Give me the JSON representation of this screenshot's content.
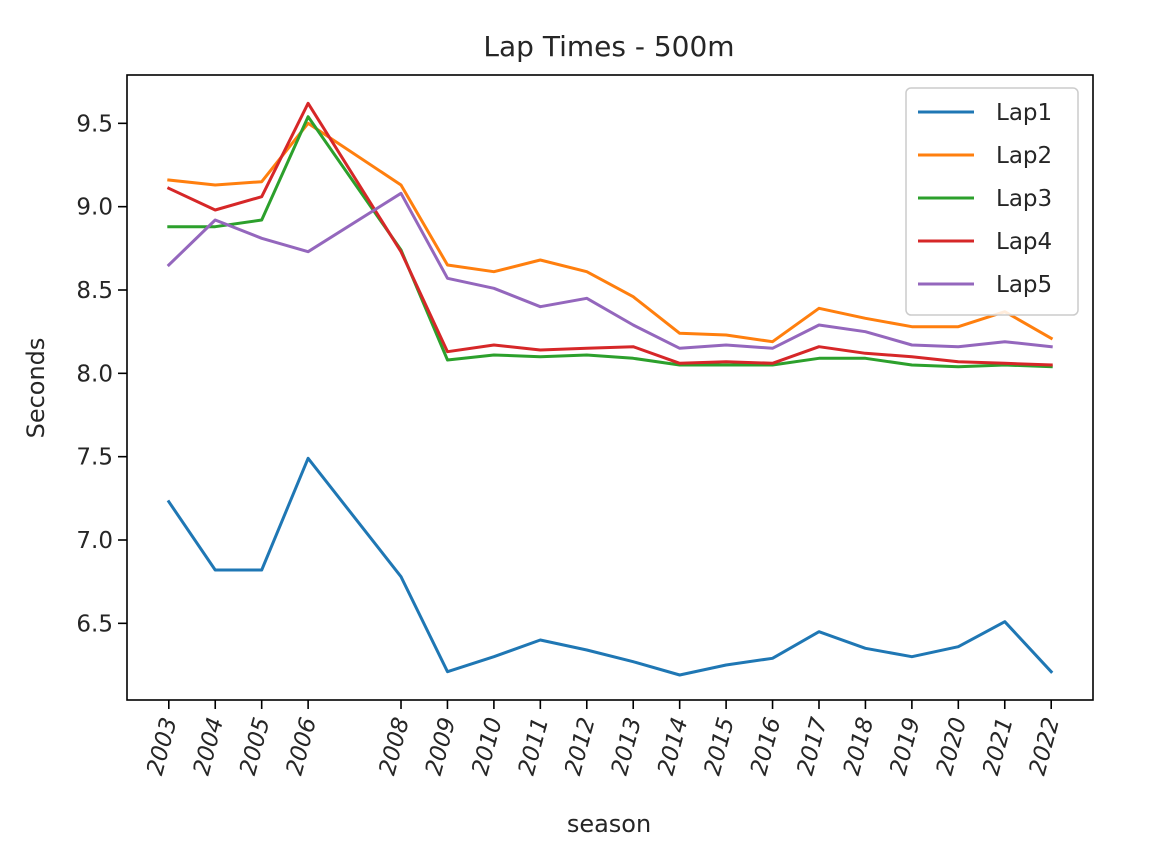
{
  "chart_data": {
    "type": "line",
    "title": "Lap Times - 500m",
    "xlabel": "season",
    "ylabel": "Seconds",
    "x": [
      2003,
      2004,
      2005,
      2006,
      2008,
      2009,
      2010,
      2011,
      2012,
      2013,
      2014,
      2015,
      2016,
      2017,
      2018,
      2019,
      2020,
      2021,
      2022
    ],
    "xticks": [
      "2003",
      "2004",
      "2005",
      "2006",
      "2008",
      "2009",
      "2010",
      "2011",
      "2012",
      "2013",
      "2014",
      "2015",
      "2016",
      "2017",
      "2018",
      "2019",
      "2020",
      "2021",
      "2022"
    ],
    "yticks": [
      "6.5",
      "7.0",
      "7.5",
      "8.0",
      "8.5",
      "9.0",
      "9.5"
    ],
    "ylim": [
      6.04,
      9.79
    ],
    "grid": false,
    "legend_position": "upper right",
    "series": [
      {
        "name": "Lap1",
        "color": "#1f77b4",
        "values": [
          7.23,
          6.82,
          6.82,
          7.49,
          6.78,
          6.21,
          6.3,
          6.4,
          6.34,
          6.27,
          6.19,
          6.25,
          6.29,
          6.45,
          6.35,
          6.3,
          6.36,
          6.51,
          6.21
        ]
      },
      {
        "name": "Lap2",
        "color": "#ff7f0e",
        "values": [
          9.16,
          9.13,
          9.15,
          9.5,
          9.13,
          8.65,
          8.61,
          8.68,
          8.61,
          8.46,
          8.24,
          8.23,
          8.19,
          8.39,
          8.33,
          8.28,
          8.28,
          8.37,
          8.21
        ]
      },
      {
        "name": "Lap3",
        "color": "#2ca02c",
        "values": [
          8.88,
          8.88,
          8.92,
          9.54,
          8.74,
          8.08,
          8.11,
          8.1,
          8.11,
          8.09,
          8.05,
          8.05,
          8.05,
          8.09,
          8.09,
          8.05,
          8.04,
          8.05,
          8.04
        ]
      },
      {
        "name": "Lap4",
        "color": "#d62728",
        "values": [
          9.11,
          8.98,
          9.06,
          9.62,
          8.73,
          8.13,
          8.17,
          8.14,
          8.15,
          8.16,
          8.06,
          8.07,
          8.06,
          8.16,
          8.12,
          8.1,
          8.07,
          8.06,
          8.05
        ]
      },
      {
        "name": "Lap5",
        "color": "#9467bd",
        "values": [
          8.65,
          8.92,
          8.81,
          8.73,
          9.08,
          8.57,
          8.51,
          8.4,
          8.45,
          8.29,
          8.15,
          8.17,
          8.15,
          8.29,
          8.25,
          8.17,
          8.16,
          8.19,
          8.16
        ]
      }
    ]
  }
}
